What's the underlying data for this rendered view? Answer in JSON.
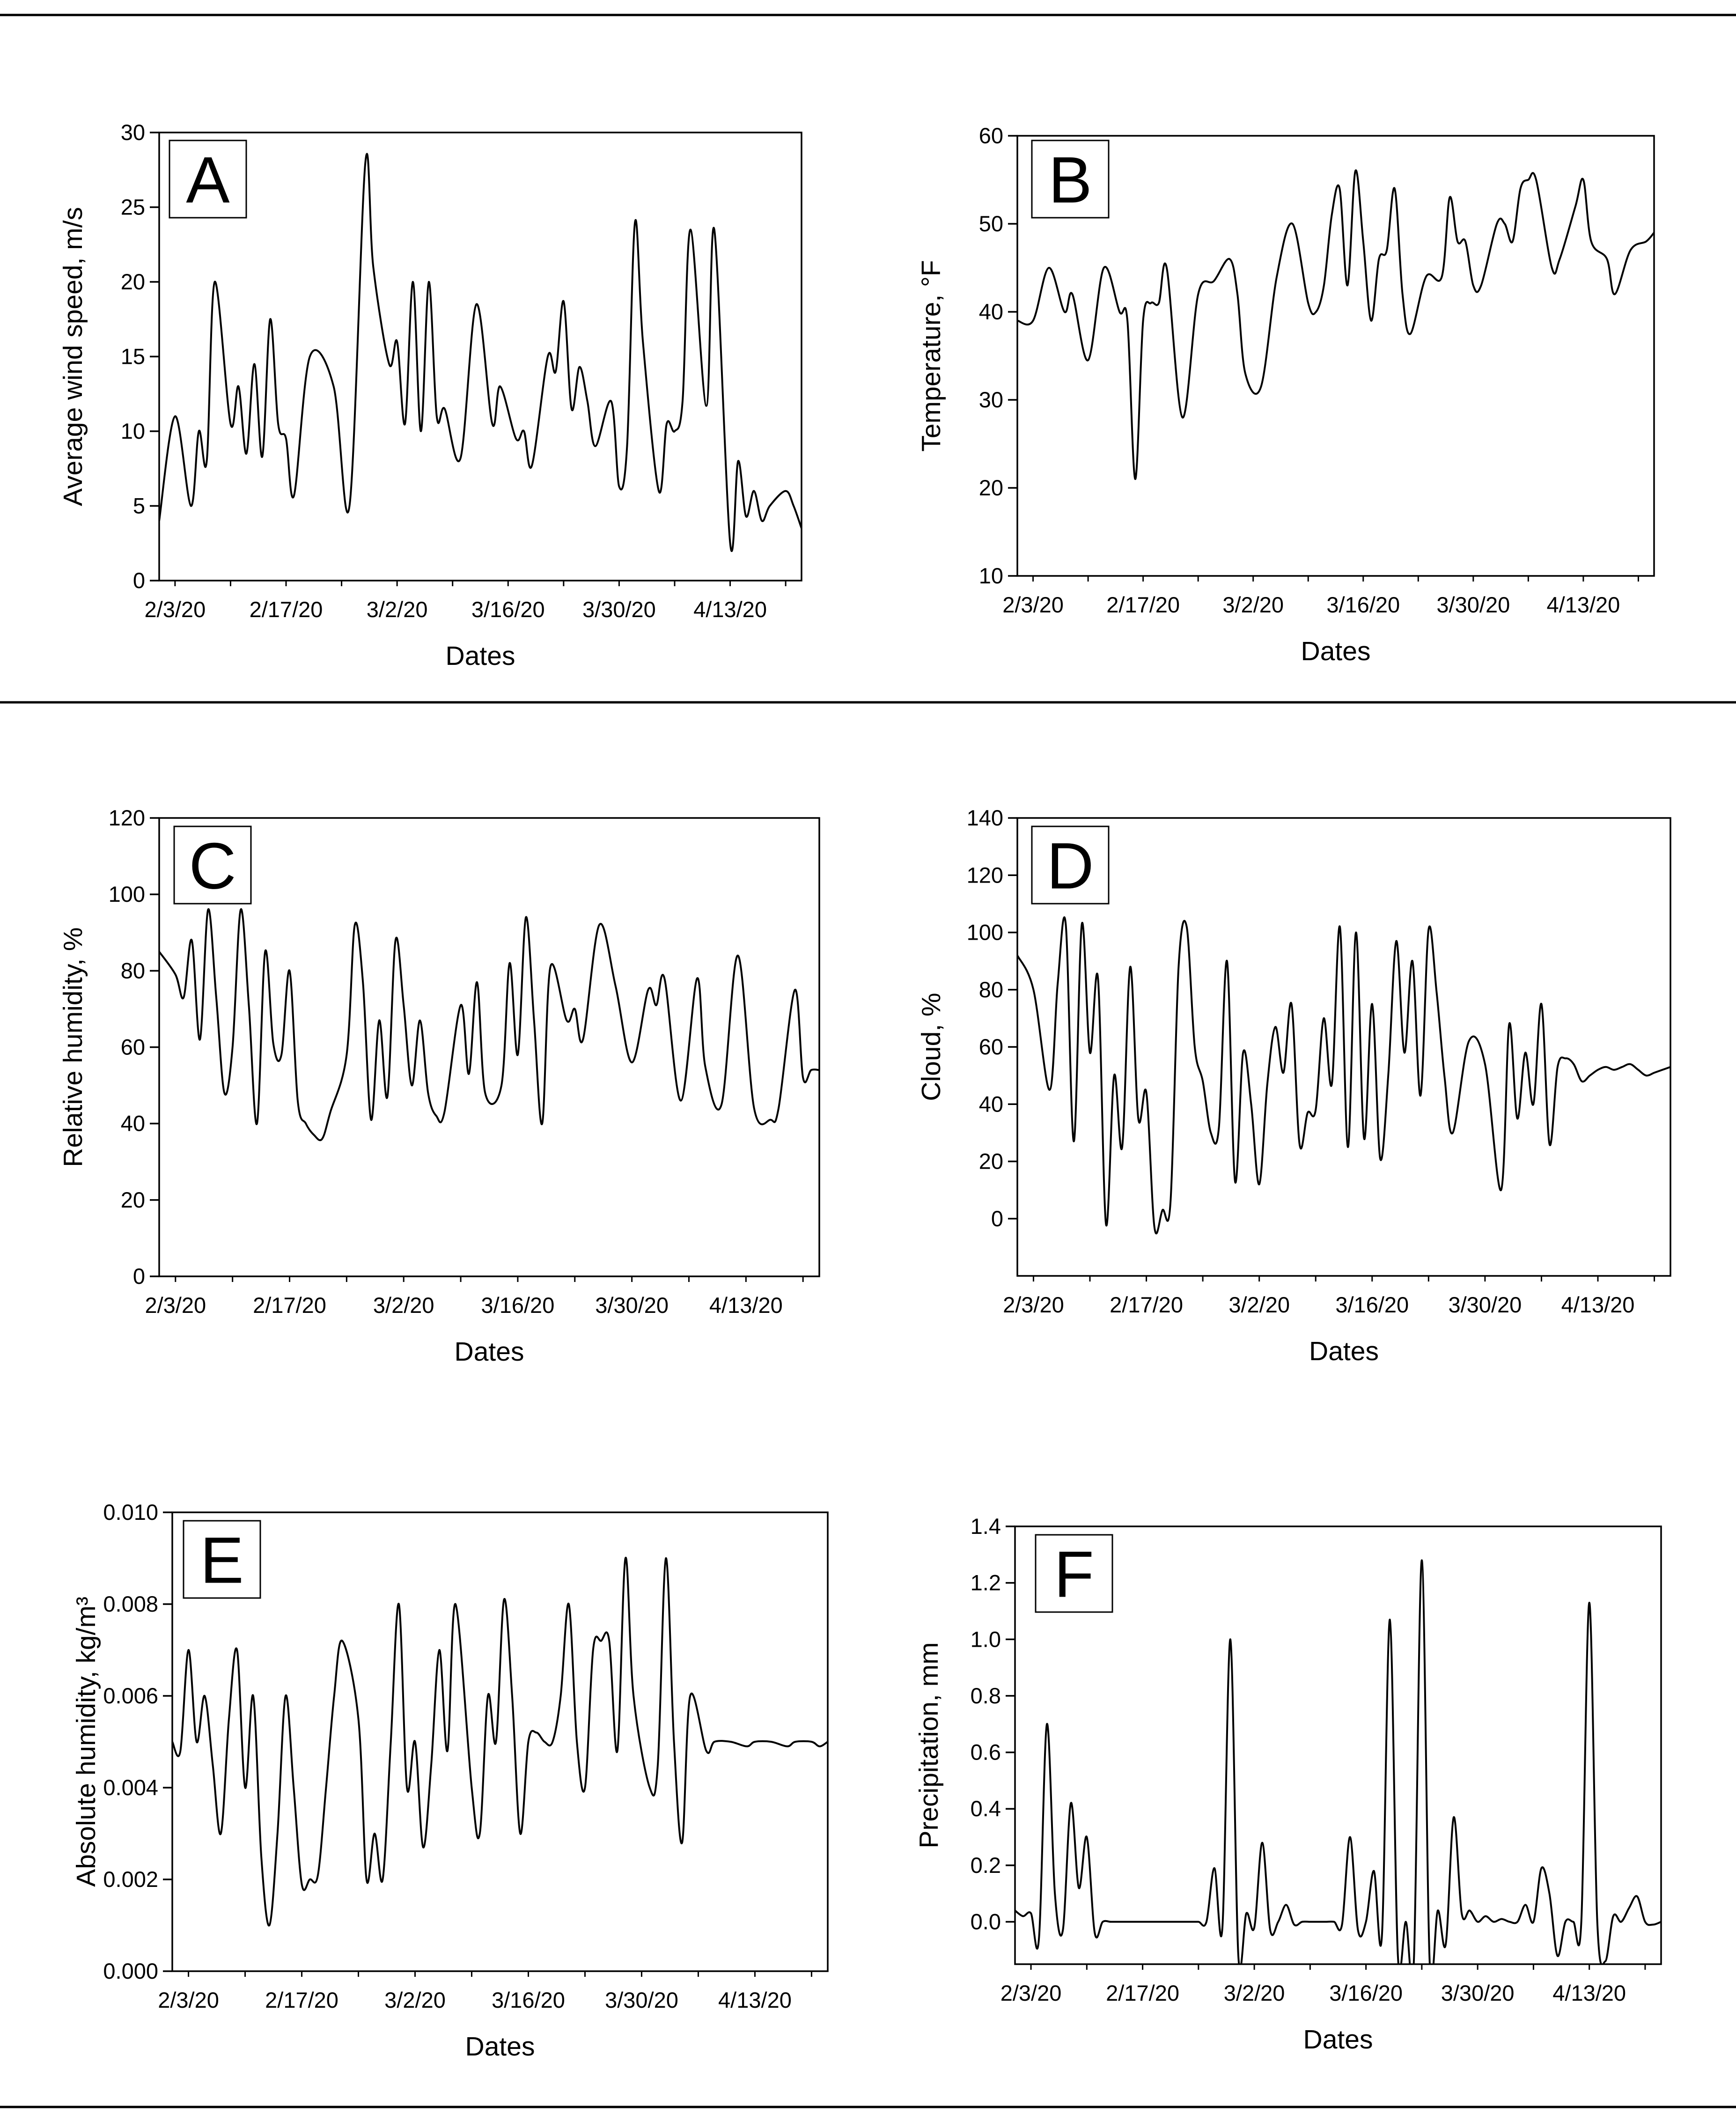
{
  "figure": {
    "x_ticks": [
      "2/3/20",
      "2/17/20",
      "3/2/20",
      "3/16/20",
      "3/30/20",
      "4/13/20"
    ]
  },
  "chart_data": [
    {
      "panel": "A",
      "type": "line",
      "title": "A",
      "xlabel": "Dates",
      "ylabel": "Average wind speed, m/s",
      "ylim": [
        0,
        30
      ],
      "yticks": [
        "0",
        "5",
        "10",
        "15",
        "20",
        "25",
        "30"
      ],
      "x": [
        "2/1",
        "2/3",
        "2/5",
        "2/6",
        "2/7",
        "2/8",
        "2/10",
        "2/11",
        "2/12",
        "2/13",
        "2/14",
        "2/15",
        "2/16",
        "2/17",
        "2/18",
        "2/20",
        "2/23",
        "2/25",
        "2/27",
        "2/28",
        "3/1",
        "3/2",
        "3/3",
        "3/4",
        "3/5",
        "3/6",
        "3/7",
        "3/8",
        "3/10",
        "3/12",
        "3/14",
        "3/15",
        "3/17",
        "3/18",
        "3/19",
        "3/21",
        "3/22",
        "3/23",
        "3/24",
        "3/25",
        "3/26",
        "3/27",
        "3/29",
        "3/30",
        "3/31",
        "4/1",
        "4/2",
        "4/4",
        "4/5",
        "4/6",
        "4/7",
        "4/8",
        "4/10",
        "4/11",
        "4/13",
        "4/14",
        "4/15",
        "4/16",
        "4/17",
        "4/18",
        "4/20",
        "4/21",
        "4/22"
      ],
      "values": [
        4,
        11,
        5,
        10,
        8,
        20,
        10.5,
        13,
        8.5,
        14.5,
        8.3,
        17.5,
        10.5,
        9.5,
        5.7,
        15,
        13,
        5,
        28,
        21,
        14.5,
        16,
        10.5,
        20,
        10,
        20,
        11,
        11.5,
        8.2,
        18.5,
        10.5,
        13,
        9.5,
        10,
        7.7,
        15,
        14,
        18.7,
        11.5,
        14.3,
        12,
        9,
        12,
        6.3,
        9,
        24,
        16,
        6,
        10.5,
        10,
        12,
        23.5,
        11.7,
        23.5,
        2.5,
        8,
        4.3,
        6,
        4,
        5,
        6,
        5,
        3.5
      ]
    },
    {
      "panel": "B",
      "type": "line",
      "title": "B",
      "xlabel": "Dates",
      "ylabel": "Temperature, °F",
      "ylim": [
        10,
        60
      ],
      "yticks": [
        "10",
        "20",
        "30",
        "40",
        "50",
        "60"
      ],
      "x": [
        "2/1",
        "2/3",
        "2/5",
        "2/7",
        "2/8",
        "2/10",
        "2/12",
        "2/14",
        "2/15",
        "2/16",
        "2/17",
        "2/18",
        "2/19",
        "2/20",
        "2/22",
        "2/24",
        "2/26",
        "2/28",
        "2/29",
        "3/1",
        "3/3",
        "3/5",
        "3/7",
        "3/9",
        "3/10",
        "3/11",
        "3/12",
        "3/13",
        "3/14",
        "3/15",
        "3/16",
        "3/17",
        "3/18",
        "3/19",
        "3/20",
        "3/21",
        "3/22",
        "3/24",
        "3/26",
        "3/27",
        "3/28",
        "3/29",
        "3/30",
        "3/31",
        "4/2",
        "4/3",
        "4/4",
        "4/5",
        "4/6",
        "4/7",
        "4/9",
        "4/10",
        "4/12",
        "4/13",
        "4/14",
        "4/16",
        "4/17",
        "4/19",
        "4/21",
        "4/22"
      ],
      "values": [
        39,
        39,
        45,
        40,
        42,
        34.5,
        45,
        40,
        39,
        21,
        39,
        41,
        41,
        45,
        28,
        42,
        43.5,
        46,
        42,
        33,
        31.5,
        44,
        50,
        41,
        40,
        43,
        51,
        54,
        43,
        56,
        48,
        39,
        46,
        47,
        54,
        42,
        37.5,
        44,
        44,
        53,
        48,
        48,
        43,
        43,
        50,
        50,
        48,
        54,
        55,
        55,
        45,
        46,
        52,
        55,
        48,
        46,
        42,
        47,
        48,
        49
      ]
    },
    {
      "panel": "C",
      "type": "line",
      "title": "C",
      "xlabel": "Dates",
      "ylabel": "Relative humidity, %",
      "ylim": [
        0,
        120
      ],
      "yticks": [
        "0",
        "20",
        "40",
        "60",
        "80",
        "100",
        "120"
      ],
      "x": [
        "2/1",
        "2/3",
        "2/4",
        "2/5",
        "2/6",
        "2/7",
        "2/8",
        "2/9",
        "2/10",
        "2/11",
        "2/12",
        "2/13",
        "2/14",
        "2/15",
        "2/16",
        "2/17",
        "2/18",
        "2/19",
        "2/20",
        "2/21",
        "2/22",
        "2/24",
        "2/25",
        "2/26",
        "2/27",
        "2/28",
        "2/29",
        "3/1",
        "3/2",
        "3/3",
        "3/4",
        "3/5",
        "3/6",
        "3/7",
        "3/9",
        "3/10",
        "3/11",
        "3/12",
        "3/14",
        "3/15",
        "3/16",
        "3/17",
        "3/18",
        "3/19",
        "3/20",
        "3/22",
        "3/23",
        "3/24",
        "3/26",
        "3/28",
        "3/30",
        "4/1",
        "4/2",
        "4/3",
        "4/5",
        "4/7",
        "4/8",
        "4/10",
        "4/12",
        "4/14",
        "4/16",
        "4/17",
        "4/19",
        "4/20",
        "4/21",
        "4/22"
      ],
      "values": [
        85,
        79,
        73,
        88,
        62,
        96,
        73,
        48,
        60,
        96,
        71,
        40,
        85,
        61,
        58,
        80,
        46,
        40,
        37,
        36,
        43,
        58,
        92,
        77,
        41,
        67,
        47,
        88,
        71,
        50,
        67,
        48,
        42,
        43,
        71,
        53,
        77,
        48,
        50,
        82,
        58,
        94,
        67,
        40,
        81,
        67,
        70,
        62,
        92,
        76,
        56,
        75,
        71,
        78,
        46,
        78,
        55,
        45,
        84,
        44,
        41,
        44,
        75,
        52,
        54,
        54
      ]
    },
    {
      "panel": "D",
      "type": "line",
      "title": "D",
      "xlabel": "Dates",
      "ylabel": "Cloud, %",
      "ylim": [
        -20,
        140
      ],
      "yticks": [
        "0",
        "20",
        "40",
        "60",
        "80",
        "100",
        "120",
        "140"
      ],
      "x": [
        "2/1",
        "2/3",
        "2/5",
        "2/6",
        "2/7",
        "2/8",
        "2/9",
        "2/10",
        "2/11",
        "2/12",
        "2/13",
        "2/14",
        "2/15",
        "2/16",
        "2/17",
        "2/18",
        "2/19",
        "2/20",
        "2/21",
        "2/22",
        "2/23",
        "2/24",
        "2/25",
        "2/26",
        "2/27",
        "2/28",
        "2/29",
        "3/1",
        "3/2",
        "3/3",
        "3/4",
        "3/5",
        "3/6",
        "3/7",
        "3/8",
        "3/9",
        "3/10",
        "3/11",
        "3/12",
        "3/13",
        "3/14",
        "3/15",
        "3/16",
        "3/17",
        "3/18",
        "3/19",
        "3/20",
        "3/21",
        "3/22",
        "3/23",
        "3/24",
        "3/25",
        "3/26",
        "3/28",
        "3/30",
        "4/1",
        "4/2",
        "4/3",
        "4/4",
        "4/5",
        "4/6",
        "4/7",
        "4/8",
        "4/9",
        "4/10",
        "4/11",
        "4/12",
        "4/13",
        "4/14",
        "4/15",
        "4/16",
        "4/17",
        "4/18",
        "4/19",
        "4/20",
        "4/21",
        "4/22"
      ],
      "values": [
        92,
        80,
        45,
        82,
        103,
        27,
        103,
        58,
        84,
        -2,
        50,
        25,
        88,
        35,
        44,
        -3,
        3,
        6,
        88,
        102,
        60,
        48,
        30,
        32,
        90,
        13,
        58,
        40,
        12,
        47,
        67,
        51,
        75,
        26,
        37,
        38,
        70,
        47,
        102,
        25,
        100,
        28,
        75,
        21,
        50,
        97,
        58,
        90,
        43,
        101,
        79,
        49,
        30,
        62,
        54,
        10,
        68,
        35,
        58,
        40,
        75,
        26,
        53,
        56,
        54,
        48,
        50,
        52,
        53,
        52,
        53,
        54,
        52,
        50,
        51,
        52,
        53
      ]
    },
    {
      "panel": "E",
      "type": "line",
      "title": "E",
      "xlabel": "Dates",
      "ylabel": "Absolute humidity, kg/m³",
      "ylim": [
        0,
        0.01
      ],
      "yticks": [
        "0.000",
        "0.002",
        "0.004",
        "0.006",
        "0.008",
        "0.010"
      ],
      "x": [
        "2/1",
        "2/2",
        "2/3",
        "2/4",
        "2/5",
        "2/6",
        "2/7",
        "2/8",
        "2/9",
        "2/10",
        "2/11",
        "2/12",
        "2/13",
        "2/14",
        "2/15",
        "2/16",
        "2/17",
        "2/18",
        "2/19",
        "2/20",
        "2/21",
        "2/22",
        "2/24",
        "2/25",
        "2/26",
        "2/27",
        "2/28",
        "2/29",
        "3/1",
        "3/2",
        "3/3",
        "3/4",
        "3/5",
        "3/6",
        "3/7",
        "3/9",
        "3/10",
        "3/11",
        "3/12",
        "3/13",
        "3/14",
        "3/15",
        "3/16",
        "3/17",
        "3/18",
        "3/19",
        "3/20",
        "3/21",
        "3/22",
        "3/23",
        "3/24",
        "3/25",
        "3/26",
        "3/27",
        "3/28",
        "3/29",
        "3/31",
        "4/1",
        "4/2",
        "4/3",
        "4/4",
        "4/5",
        "4/7",
        "4/8",
        "4/10",
        "4/12",
        "4/13",
        "4/15",
        "4/17",
        "4/18",
        "4/20",
        "4/21",
        "4/22"
      ],
      "values": [
        0.005,
        0.0048,
        0.007,
        0.005,
        0.006,
        0.0045,
        0.003,
        0.0055,
        0.007,
        0.004,
        0.006,
        0.0025,
        0.001,
        0.003,
        0.006,
        0.004,
        0.0019,
        0.002,
        0.0021,
        0.004,
        0.006,
        0.0072,
        0.0055,
        0.002,
        0.003,
        0.002,
        0.005,
        0.008,
        0.004,
        0.005,
        0.0027,
        0.0045,
        0.007,
        0.0048,
        0.008,
        0.004,
        0.003,
        0.006,
        0.005,
        0.0081,
        0.006,
        0.003,
        0.005,
        0.0052,
        0.005,
        0.005,
        0.006,
        0.008,
        0.005,
        0.004,
        0.007,
        0.0072,
        0.0072,
        0.0048,
        0.009,
        0.006,
        0.004,
        0.0045,
        0.009,
        0.005,
        0.0028,
        0.006,
        0.0048,
        0.005,
        0.005,
        0.0049,
        0.005,
        0.005,
        0.0049,
        0.005,
        0.005,
        0.0049,
        0.005
      ]
    },
    {
      "panel": "F",
      "type": "line",
      "title": "F",
      "xlabel": "Dates",
      "ylabel": "Precipitation, mm",
      "ylim": [
        -0.15,
        1.4
      ],
      "yticks": [
        "0.0",
        "0.2",
        "0.4",
        "0.6",
        "0.8",
        "1.0",
        "1.2",
        "1.4"
      ],
      "x": [
        "2/1",
        "2/2",
        "2/3",
        "2/4",
        "2/5",
        "2/6",
        "2/7",
        "2/8",
        "2/9",
        "2/10",
        "2/11",
        "2/12",
        "2/13",
        "2/14",
        "2/15",
        "2/16",
        "2/17",
        "2/18",
        "2/19",
        "2/20",
        "2/21",
        "2/22",
        "2/23",
        "2/24",
        "2/25",
        "2/26",
        "2/27",
        "2/28",
        "2/29",
        "3/1",
        "3/2",
        "3/3",
        "3/4",
        "3/5",
        "3/6",
        "3/7",
        "3/8",
        "3/9",
        "3/10",
        "3/11",
        "3/12",
        "3/13",
        "3/14",
        "3/15",
        "3/16",
        "3/17",
        "3/18",
        "3/19",
        "3/20",
        "3/21",
        "3/22",
        "3/23",
        "3/24",
        "3/25",
        "3/26",
        "3/27",
        "3/28",
        "3/29",
        "3/30",
        "3/31",
        "4/1",
        "4/2",
        "4/3",
        "4/4",
        "4/5",
        "4/6",
        "4/7",
        "4/8",
        "4/9",
        "4/10",
        "4/11",
        "4/12",
        "4/13",
        "4/14",
        "4/15",
        "4/16",
        "4/17",
        "4/18",
        "4/19",
        "4/20",
        "4/21",
        "4/22"
      ],
      "values": [
        0.04,
        0.02,
        0.03,
        -0.06,
        0.7,
        0.1,
        -0.03,
        0.42,
        0.12,
        0.3,
        -0.04,
        0.0,
        0.0,
        0.0,
        0.0,
        0.0,
        0.0,
        0.0,
        0.0,
        0.0,
        0.0,
        0.0,
        0.0,
        0.0,
        0.0,
        0.19,
        -0.02,
        1.0,
        -0.12,
        0.03,
        -0.02,
        0.28,
        -0.03,
        0.0,
        0.06,
        -0.01,
        0.0,
        0.0,
        0.0,
        0.0,
        0.0,
        -0.01,
        0.3,
        -0.03,
        0.0,
        0.18,
        -0.05,
        1.07,
        -0.12,
        0.0,
        -0.14,
        1.28,
        -0.15,
        0.04,
        -0.08,
        0.37,
        0.03,
        0.04,
        0.0,
        0.02,
        0.0,
        0.01,
        0.0,
        0.0,
        0.06,
        0.0,
        0.19,
        0.1,
        -0.12,
        0.0,
        0.0,
        0.0,
        1.13,
        0.0,
        -0.14,
        0.02,
        0.0,
        0.05,
        0.09,
        0.0,
        -0.01,
        0.0
      ]
    }
  ]
}
